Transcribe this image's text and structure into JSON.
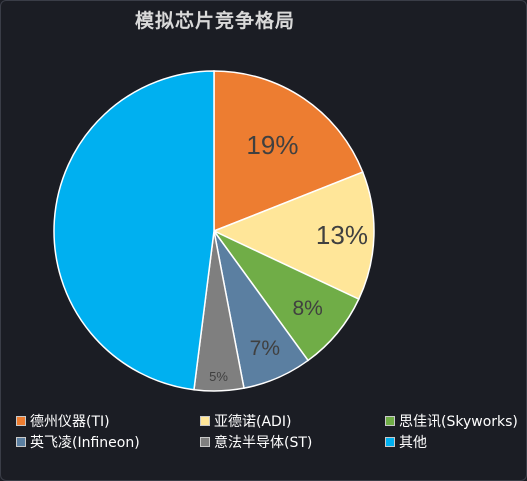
{
  "chart_data": {
    "type": "pie",
    "title": "模拟芯片竞争格局",
    "slices": [
      {
        "label": "德州仪器(TI)",
        "value": 19,
        "data_label": "19%",
        "color": "#ed7d31"
      },
      {
        "label": "亚德诺(ADI)",
        "value": 13,
        "data_label": "13%",
        "color": "#ffe699"
      },
      {
        "label": "思佳讯(Skyworks)",
        "value": 8,
        "data_label": "8%",
        "color": "#70ad47"
      },
      {
        "label": "英飞凌(Infineon)",
        "value": 7,
        "data_label": "7%",
        "color": "#5b7fa1"
      },
      {
        "label": "意法半导体(ST)",
        "value": 5,
        "data_label": "5%",
        "color": "#7f7f7f"
      },
      {
        "label": "其他",
        "value": 48,
        "data_label": "",
        "color": "#00b0f0"
      }
    ],
    "legend_position": "bottom"
  }
}
